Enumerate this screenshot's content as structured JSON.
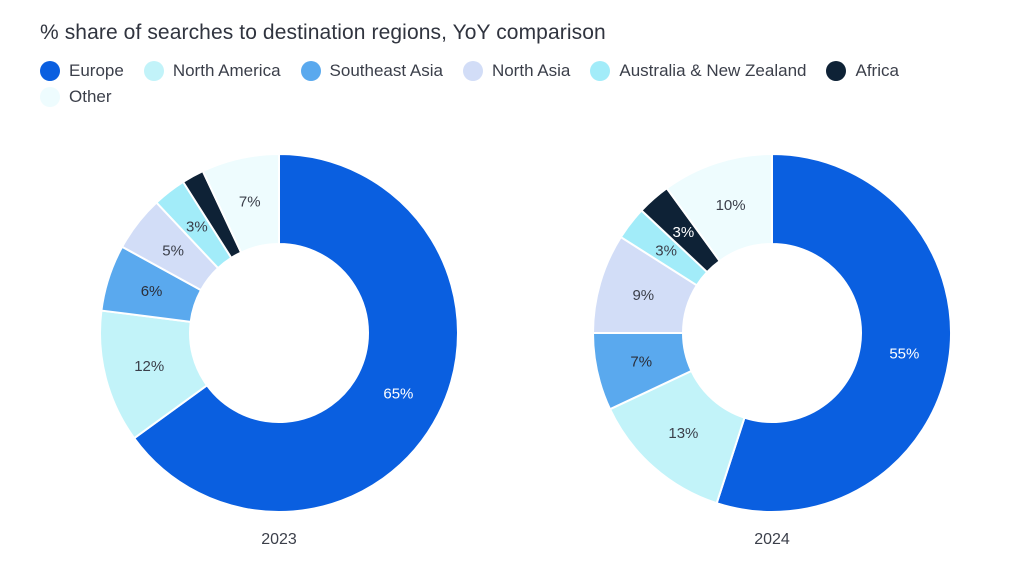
{
  "chart_data": {
    "type": "donut",
    "title": "% share of searches to destination regions, YoY comparison",
    "categories": [
      "Europe",
      "North America",
      "Southeast Asia",
      "North Asia",
      "Australia & New Zealand",
      "Africa",
      "Other"
    ],
    "colors": [
      "#0a5fe0",
      "#c2f3f9",
      "#5aa9ee",
      "#d2ddf7",
      "#a2ecf9",
      "#0e2236",
      "#eefcfe"
    ],
    "label_colors": [
      "#ffffff",
      "#3b3f4a",
      "#2b2f3a",
      "#3b3f4a",
      "#3b3f4a",
      "#ffffff",
      "#3b3f4a"
    ],
    "series": [
      {
        "name": "2023",
        "values": [
          65,
          12,
          6,
          5,
          3,
          2,
          7
        ],
        "labels": [
          "65%",
          "12%",
          "6%",
          "5%",
          "3%",
          "",
          "7%"
        ]
      },
      {
        "name": "2024",
        "values": [
          55,
          13,
          7,
          9,
          3,
          3,
          10
        ],
        "labels": [
          "55%",
          "13%",
          "7%",
          "9%",
          "3%",
          "3%",
          "10%"
        ]
      }
    ],
    "legend_position": "top-left"
  }
}
